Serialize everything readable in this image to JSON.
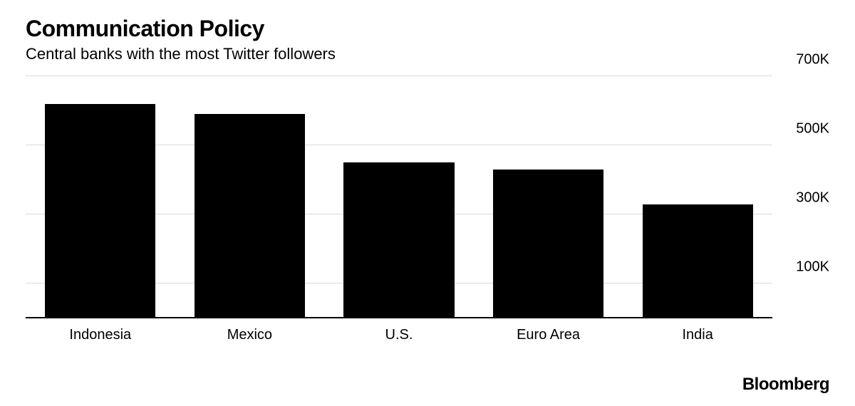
{
  "chart": {
    "type": "bar",
    "title": "Communication Policy",
    "subtitle": "Central banks with the most Twitter followers",
    "title_fontsize": 32,
    "title_fontweight": 800,
    "subtitle_fontsize": 22,
    "categories": [
      "Indonesia",
      "Mexico",
      "U.S.",
      "Euro Area",
      "India"
    ],
    "values": [
      620000,
      590000,
      450000,
      430000,
      330000
    ],
    "bar_color": "#000000",
    "background_color": "#ffffff",
    "grid_color": "#d9d9d9",
    "baseline_color": "#000000",
    "yaxis": {
      "min": 0,
      "max": 700000,
      "ticks": [
        100000,
        300000,
        500000,
        700000
      ],
      "tick_labels": [
        "100K",
        "300K",
        "500K",
        "700K"
      ],
      "label_fontsize": 20
    },
    "xaxis": {
      "label_fontsize": 20
    },
    "bar_width_ratio": 0.74
  },
  "brand": "Bloomberg"
}
